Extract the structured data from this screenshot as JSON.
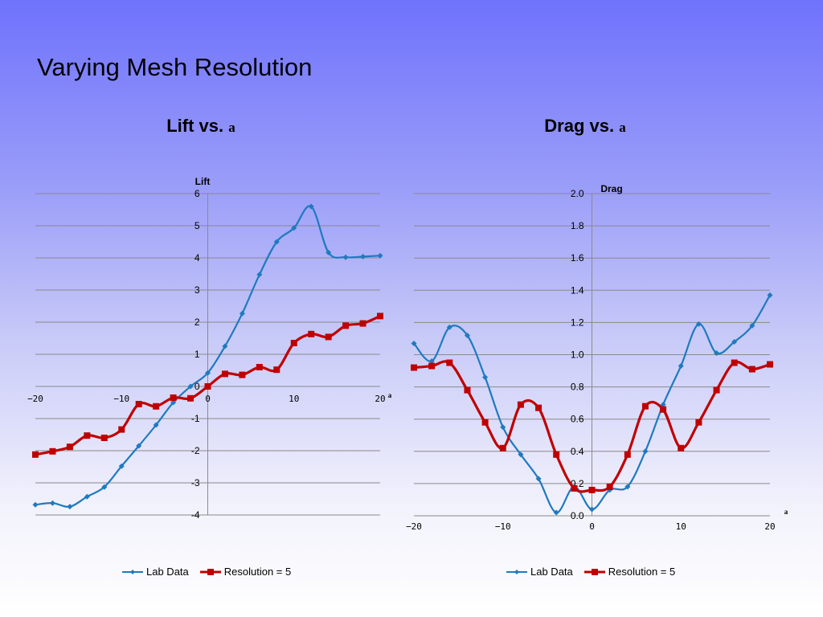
{
  "slide": {
    "title": "Varying Mesh Resolution"
  },
  "chart_data": [
    {
      "type": "line",
      "title": "Lift vs.",
      "title_symbol": "a",
      "ylabel": "Lift",
      "xlabel": "a",
      "xlim": [
        -20,
        20
      ],
      "ylim": [
        -4,
        6
      ],
      "xticks": [
        -20,
        -10,
        0,
        10,
        20
      ],
      "xtick_labels": [
        "−20",
        "−10",
        "0",
        "10",
        "20"
      ],
      "yticks": [
        -4,
        -3,
        -2,
        -1,
        0,
        1,
        2,
        3,
        4,
        5,
        6
      ],
      "ytick_labels": [
        "-4",
        "-3",
        "-2",
        "-1",
        "0",
        "1",
        "2",
        "3",
        "4",
        "5",
        "6"
      ],
      "grid": true,
      "legend_position": "bottom",
      "series": [
        {
          "name": "Lab Data",
          "color": "#1f7abf",
          "marker": "diamond",
          "x": [
            -20,
            -18,
            -16,
            -14,
            -12,
            -10,
            -8,
            -6,
            -4,
            -2,
            0,
            2,
            4,
            6,
            8,
            10,
            12,
            14,
            16,
            18,
            20
          ],
          "y": [
            -3.68,
            -3.63,
            -3.74,
            -3.43,
            -3.13,
            -2.48,
            -1.85,
            -1.2,
            -0.5,
            0.0,
            0.42,
            1.25,
            2.27,
            3.48,
            4.5,
            4.93,
            5.6,
            4.17,
            4.02,
            4.04,
            4.07
          ]
        },
        {
          "name": "Resolution = 5",
          "color": "#c00000",
          "marker": "square",
          "x": [
            -20,
            -18,
            -16,
            -14,
            -12,
            -10,
            -8,
            -6,
            -4,
            -2,
            0,
            2,
            4,
            6,
            8,
            10,
            12,
            14,
            16,
            18,
            20
          ],
          "y": [
            -2.12,
            -2.02,
            -1.88,
            -1.53,
            -1.6,
            -1.34,
            -0.55,
            -0.62,
            -0.35,
            -0.37,
            0.0,
            0.39,
            0.36,
            0.6,
            0.52,
            1.35,
            1.63,
            1.54,
            1.89,
            1.96,
            2.19
          ]
        }
      ]
    },
    {
      "type": "line",
      "title": "Drag vs.",
      "title_symbol": "a",
      "ylabel": "Drag",
      "xlabel": "a",
      "xlim": [
        -20,
        20
      ],
      "ylim": [
        0,
        2
      ],
      "xticks": [
        -20,
        -10,
        0,
        10,
        20
      ],
      "xtick_labels": [
        "−20",
        "−10",
        "0",
        "10",
        "20"
      ],
      "yticks": [
        0,
        0.2,
        0.4,
        0.6,
        0.8,
        1.0,
        1.2,
        1.4,
        1.6,
        1.8,
        2.0
      ],
      "ytick_labels": [
        "0.0",
        "0.2",
        "0.4",
        "0.6",
        "0.8",
        "1.0",
        "1.2",
        "1.4",
        "1.6",
        "1.8",
        "2.0"
      ],
      "grid": true,
      "legend_position": "bottom",
      "series": [
        {
          "name": "Lab Data",
          "color": "#1f7abf",
          "marker": "diamond",
          "x": [
            -20,
            -18,
            -16,
            -14,
            -12,
            -10,
            -8,
            -6,
            -4,
            -2,
            0,
            2,
            4,
            6,
            8,
            10,
            12,
            14,
            16,
            18,
            20
          ],
          "y": [
            1.07,
            0.96,
            1.17,
            1.12,
            0.86,
            0.55,
            0.38,
            0.23,
            0.02,
            0.18,
            0.04,
            0.16,
            0.18,
            0.4,
            0.69,
            0.93,
            1.19,
            1.01,
            1.08,
            1.18,
            1.37
          ]
        },
        {
          "name": "Resolution = 5",
          "color": "#c00000",
          "marker": "square",
          "x": [
            -20,
            -18,
            -16,
            -14,
            -12,
            -10,
            -8,
            -6,
            -4,
            -2,
            0,
            2,
            4,
            6,
            8,
            10,
            12,
            14,
            16,
            18,
            20
          ],
          "y": [
            0.92,
            0.93,
            0.95,
            0.78,
            0.58,
            0.42,
            0.69,
            0.67,
            0.38,
            0.17,
            0.16,
            0.18,
            0.38,
            0.68,
            0.66,
            0.42,
            0.58,
            0.78,
            0.95,
            0.91,
            0.94
          ]
        }
      ]
    }
  ]
}
